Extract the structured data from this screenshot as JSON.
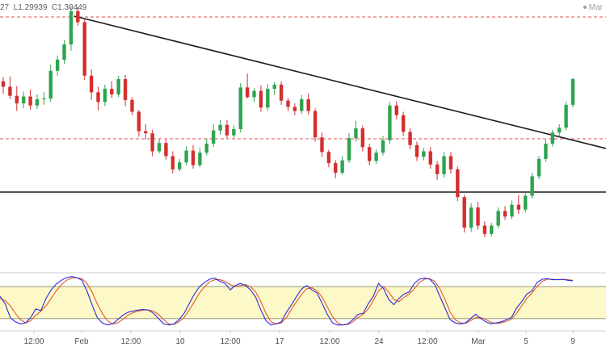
{
  "header": {
    "ohlc_text": "27  L1.29939  C1.30449",
    "brand_text": "Mar"
  },
  "colors": {
    "up": "#2ea44f",
    "down": "#d32f2f",
    "resistance": "#e05050",
    "trend": "#1c1c1c",
    "stoch_k": "#2b2bd9",
    "stoch_d": "#e05a2a",
    "stoch_band": "#fdf8c8",
    "axis": "#c9ccd1"
  },
  "chart_data": {
    "type": "candlestick",
    "x_ticks": [
      "12:00",
      "Feb",
      "12:00",
      "10",
      "12:00",
      "17",
      "12:00",
      "24",
      "12:00",
      "Mar",
      "5",
      "9"
    ],
    "y_domain": [
      1.2866,
      1.3259
    ],
    "candles": [
      [
        1.3142,
        1.3148,
        1.3124,
        1.3134
      ],
      [
        1.3134,
        1.3149,
        1.3116,
        1.3121
      ],
      [
        1.3121,
        1.3135,
        1.3099,
        1.311
      ],
      [
        1.311,
        1.3127,
        1.3103,
        1.312
      ],
      [
        1.312,
        1.313,
        1.3101,
        1.3107
      ],
      [
        1.3107,
        1.3123,
        1.3102,
        1.3116
      ],
      [
        1.3116,
        1.3126,
        1.3108,
        1.3117
      ],
      [
        1.3117,
        1.3166,
        1.3112,
        1.3157
      ],
      [
        1.3157,
        1.3179,
        1.315,
        1.3173
      ],
      [
        1.3173,
        1.3201,
        1.3167,
        1.3195
      ],
      [
        1.3195,
        1.325,
        1.3186,
        1.3243
      ],
      [
        1.3243,
        1.3249,
        1.3222,
        1.3227
      ],
      [
        1.3227,
        1.3231,
        1.3144,
        1.315
      ],
      [
        1.315,
        1.3159,
        1.3115,
        1.3126
      ],
      [
        1.3126,
        1.3134,
        1.31,
        1.3112
      ],
      [
        1.3112,
        1.3137,
        1.3106,
        1.3131
      ],
      [
        1.3131,
        1.3142,
        1.3118,
        1.3123
      ],
      [
        1.3123,
        1.315,
        1.3119,
        1.3145
      ],
      [
        1.3145,
        1.3151,
        1.3106,
        1.3115
      ],
      [
        1.3115,
        1.3119,
        1.3093,
        1.3098
      ],
      [
        1.3098,
        1.3101,
        1.3062,
        1.307
      ],
      [
        1.307,
        1.308,
        1.3058,
        1.3067
      ],
      [
        1.3067,
        1.3072,
        1.3034,
        1.3041
      ],
      [
        1.3041,
        1.3059,
        1.3038,
        1.3053
      ],
      [
        1.3053,
        1.3058,
        1.3029,
        1.3034
      ],
      [
        1.3034,
        1.3041,
        1.3009,
        1.3015
      ],
      [
        1.3015,
        1.303,
        1.3012,
        1.3025
      ],
      [
        1.3025,
        1.3048,
        1.3021,
        1.3042
      ],
      [
        1.3042,
        1.305,
        1.3016,
        1.3021
      ],
      [
        1.3021,
        1.3046,
        1.3018,
        1.3039
      ],
      [
        1.3039,
        1.306,
        1.3035,
        1.3052
      ],
      [
        1.3052,
        1.308,
        1.3047,
        1.3071
      ],
      [
        1.3071,
        1.3086,
        1.3065,
        1.3079
      ],
      [
        1.3079,
        1.3086,
        1.306,
        1.3064
      ],
      [
        1.3064,
        1.3078,
        1.306,
        1.3073
      ],
      [
        1.3073,
        1.3139,
        1.3068,
        1.3133
      ],
      [
        1.3133,
        1.3153,
        1.3117,
        1.3119
      ],
      [
        1.3119,
        1.3132,
        1.3112,
        1.3128
      ],
      [
        1.3128,
        1.3136,
        1.3098,
        1.3104
      ],
      [
        1.3104,
        1.3138,
        1.31,
        1.3131
      ],
      [
        1.3131,
        1.3141,
        1.3122,
        1.3137
      ],
      [
        1.3137,
        1.3142,
        1.3108,
        1.3114
      ],
      [
        1.3114,
        1.3118,
        1.3099,
        1.3105
      ],
      [
        1.3105,
        1.311,
        1.3093,
        1.3099
      ],
      [
        1.3099,
        1.3122,
        1.3095,
        1.3116
      ],
      [
        1.3116,
        1.3124,
        1.3094,
        1.3099
      ],
      [
        1.3099,
        1.3103,
        1.3055,
        1.3061
      ],
      [
        1.3061,
        1.3068,
        1.3033,
        1.304
      ],
      [
        1.304,
        1.3043,
        1.3018,
        1.3024
      ],
      [
        1.3024,
        1.3028,
        1.3002,
        1.301
      ],
      [
        1.301,
        1.3034,
        1.3007,
        1.3028
      ],
      [
        1.3028,
        1.3067,
        1.3024,
        1.306
      ],
      [
        1.306,
        1.3085,
        1.3055,
        1.3074
      ],
      [
        1.3074,
        1.3078,
        1.3041,
        1.3047
      ],
      [
        1.3047,
        1.3052,
        1.3021,
        1.3027
      ],
      [
        1.3027,
        1.3044,
        1.3023,
        1.3039
      ],
      [
        1.3039,
        1.3063,
        1.3035,
        1.3057
      ],
      [
        1.3057,
        1.3112,
        1.3052,
        1.3107
      ],
      [
        1.3107,
        1.3113,
        1.3087,
        1.3093
      ],
      [
        1.3093,
        1.3098,
        1.3063,
        1.3069
      ],
      [
        1.3069,
        1.3074,
        1.3044,
        1.305
      ],
      [
        1.305,
        1.3055,
        1.3027,
        1.3033
      ],
      [
        1.3033,
        1.3046,
        1.3028,
        1.3041
      ],
      [
        1.3041,
        1.3047,
        1.3016,
        1.3022
      ],
      [
        1.3022,
        1.3027,
        1.3,
        1.3008
      ],
      [
        1.3008,
        1.304,
        1.3003,
        1.3034
      ],
      [
        1.3034,
        1.304,
        1.3009,
        1.3015
      ],
      [
        1.3015,
        1.3019,
        1.2969,
        1.2975
      ],
      [
        1.2975,
        1.2978,
        1.2924,
        1.2931
      ],
      [
        1.2931,
        1.2966,
        1.2925,
        1.296
      ],
      [
        1.296,
        1.2968,
        1.2928,
        1.2934
      ],
      [
        1.2934,
        1.294,
        1.2917,
        1.2922
      ],
      [
        1.2922,
        1.2938,
        1.2918,
        1.2934
      ],
      [
        1.2934,
        1.296,
        1.293,
        1.2955
      ],
      [
        1.2955,
        1.2962,
        1.2942,
        1.2947
      ],
      [
        1.2947,
        1.297,
        1.2943,
        1.2964
      ],
      [
        1.2964,
        1.2978,
        1.2951,
        1.2957
      ],
      [
        1.2957,
        1.2982,
        1.2953,
        1.2977
      ],
      [
        1.2977,
        1.301,
        1.2973,
        1.3005
      ],
      [
        1.3005,
        1.3034,
        1.3001,
        1.303
      ],
      [
        1.303,
        1.3058,
        1.3026,
        1.3052
      ],
      [
        1.3052,
        1.3072,
        1.3048,
        1.3068
      ],
      [
        1.3068,
        1.308,
        1.3062,
        1.3075
      ],
      [
        1.3075,
        1.3113,
        1.3071,
        1.3108
      ],
      [
        1.3108,
        1.3147,
        1.3104,
        1.3145
      ]
    ],
    "stochastic": {
      "overbought": 80,
      "oversold": 20,
      "k": [
        62,
        48,
        22,
        14,
        10,
        12,
        22,
        38,
        35,
        58,
        74,
        85,
        92,
        97,
        99,
        97,
        92,
        72,
        46,
        22,
        12,
        8,
        10,
        18,
        26,
        32,
        34,
        36,
        37,
        36,
        30,
        20,
        10,
        8,
        10,
        18,
        30,
        48,
        66,
        80,
        88,
        94,
        96,
        90,
        86,
        74,
        82,
        86,
        82,
        74,
        60,
        36,
        16,
        8,
        10,
        14,
        32,
        46,
        62,
        76,
        82,
        74,
        68,
        48,
        28,
        12,
        8,
        8,
        10,
        18,
        28,
        30,
        48,
        62,
        86,
        76,
        56,
        46,
        58,
        66,
        70,
        86,
        94,
        96,
        94,
        84,
        62,
        40,
        18,
        12,
        10,
        12,
        20,
        28,
        20,
        14,
        10,
        12,
        14,
        18,
        22,
        40,
        52,
        66,
        72,
        88,
        94,
        95,
        93,
        93,
        94,
        92,
        91
      ],
      "d": [
        58,
        54,
        44,
        30,
        18,
        12,
        16,
        26,
        34,
        44,
        58,
        72,
        84,
        92,
        96,
        97,
        95,
        86,
        70,
        48,
        30,
        16,
        10,
        12,
        18,
        26,
        31,
        34,
        36,
        36,
        34,
        28,
        18,
        10,
        9,
        14,
        22,
        36,
        52,
        68,
        80,
        89,
        93,
        93,
        90,
        84,
        80,
        82,
        84,
        80,
        70,
        52,
        30,
        14,
        10,
        12,
        22,
        38,
        52,
        66,
        76,
        78,
        72,
        60,
        42,
        24,
        12,
        8,
        9,
        14,
        22,
        28,
        38,
        54,
        72,
        80,
        70,
        56,
        52,
        60,
        66,
        76,
        88,
        94,
        95,
        90,
        76,
        56,
        32,
        18,
        12,
        11,
        16,
        22,
        22,
        18,
        13,
        11,
        12,
        15,
        19,
        30,
        44,
        58,
        68,
        80,
        90,
        94,
        94,
        93,
        93,
        93,
        92
      ]
    }
  }
}
